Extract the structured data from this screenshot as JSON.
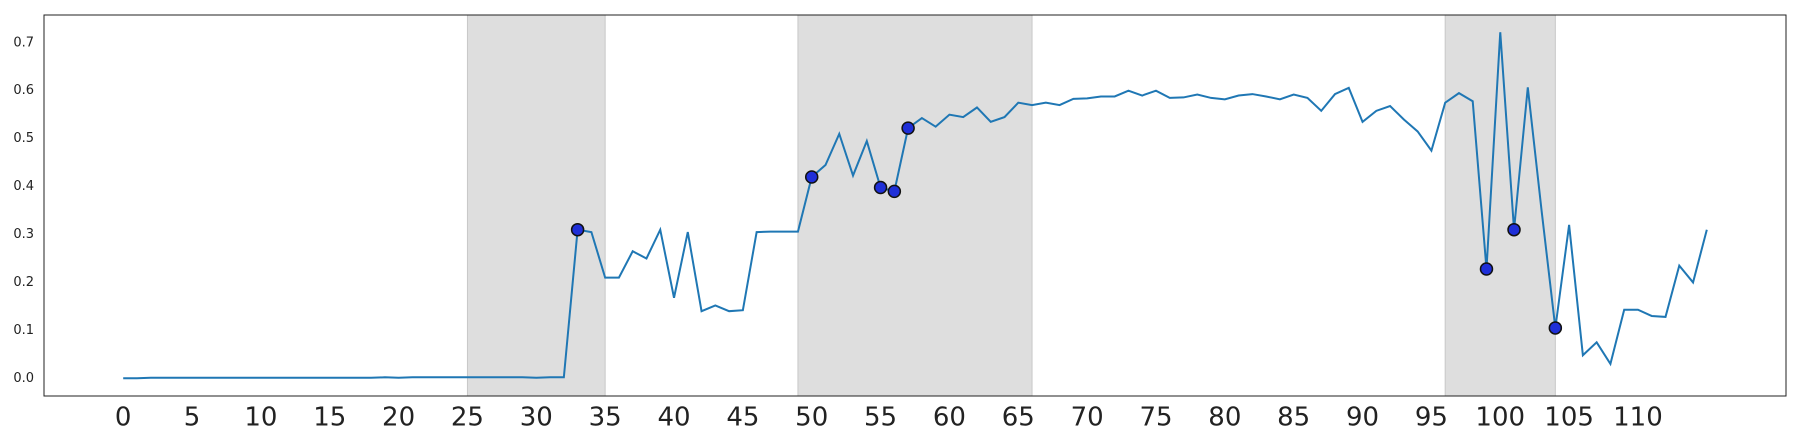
{
  "chart_data": {
    "type": "line",
    "x": [
      0,
      1,
      2,
      3,
      4,
      5,
      6,
      7,
      8,
      9,
      10,
      11,
      12,
      13,
      14,
      15,
      16,
      17,
      18,
      19,
      20,
      21,
      22,
      23,
      24,
      25,
      26,
      27,
      28,
      29,
      30,
      31,
      32,
      33,
      34,
      35,
      36,
      37,
      38,
      39,
      40,
      41,
      42,
      43,
      44,
      45,
      46,
      47,
      48,
      49,
      50,
      51,
      52,
      53,
      54,
      55,
      56,
      57,
      58,
      59,
      60,
      61,
      62,
      63,
      64,
      65,
      66,
      67,
      68,
      69,
      70,
      71,
      72,
      73,
      74,
      75,
      76,
      77,
      78,
      79,
      80,
      81,
      82,
      83,
      84,
      85,
      86,
      87,
      88,
      89,
      90,
      91,
      92,
      93,
      94,
      95,
      96,
      97,
      98,
      99,
      100,
      101,
      102,
      103,
      104,
      105,
      106,
      107,
      108,
      109,
      110,
      111,
      112,
      113,
      114,
      115
    ],
    "series": [
      {
        "color": "#1f77b4",
        "values": [
          0,
          0,
          0.001,
          0.001,
          0.001,
          0.001,
          0.001,
          0.001,
          0.001,
          0.001,
          0.001,
          0.001,
          0.001,
          0.001,
          0.001,
          0.001,
          0.001,
          0.001,
          0.001,
          0.002,
          0.001,
          0.002,
          0.002,
          0.002,
          0.002,
          0.002,
          0.002,
          0.002,
          0.002,
          0.002,
          0.001,
          0.002,
          0.002,
          0.31,
          0.305,
          0.21,
          0.21,
          0.265,
          0.25,
          0.31,
          0.168,
          0.305,
          0.14,
          0.152,
          0.14,
          0.142,
          0.305,
          0.306,
          0.306,
          0.306,
          0.42,
          0.445,
          0.51,
          0.423,
          0.495,
          0.398,
          0.39,
          0.522,
          0.543,
          0.525,
          0.55,
          0.545,
          0.565,
          0.535,
          0.545,
          0.575,
          0.57,
          0.575,
          0.57,
          0.583,
          0.584,
          0.588,
          0.588,
          0.6,
          0.59,
          0.6,
          0.585,
          0.586,
          0.592,
          0.585,
          0.582,
          0.59,
          0.593,
          0.588,
          0.582,
          0.592,
          0.585,
          0.558,
          0.593,
          0.606,
          0.535,
          0.558,
          0.568,
          0.54,
          0.515,
          0.475,
          0.575,
          0.595,
          0.578,
          0.228,
          0.722,
          0.31,
          0.607,
          0.35,
          0.105,
          0.32,
          0.048,
          0.075,
          0.03,
          0.143,
          0.143,
          0.13,
          0.128,
          0.235,
          0.2,
          0.31
        ]
      }
    ],
    "markers": {
      "color": "#1f2fd8",
      "x": [
        33,
        50,
        55,
        56,
        57,
        99,
        101,
        104
      ],
      "values": [
        0.31,
        0.42,
        0.398,
        0.39,
        0.522,
        0.228,
        0.31,
        0.105
      ]
    },
    "spans": [
      [
        25,
        35
      ],
      [
        49,
        66
      ],
      [
        96,
        104
      ]
    ],
    "span_color": "#dedede",
    "xlim": [
      -5.75,
      120.75
    ],
    "ylim": [
      -0.037,
      0.758
    ],
    "xticks": [
      0,
      5,
      10,
      15,
      20,
      25,
      30,
      35,
      40,
      45,
      50,
      55,
      60,
      65,
      70,
      75,
      80,
      85,
      90,
      95,
      100,
      105,
      110
    ],
    "yticks": [
      {
        "value": 0,
        "label": "0.0"
      },
      0.1,
      0.2,
      0.3,
      0.4,
      0.5,
      0.6,
      0.7
    ],
    "grid": false
  }
}
